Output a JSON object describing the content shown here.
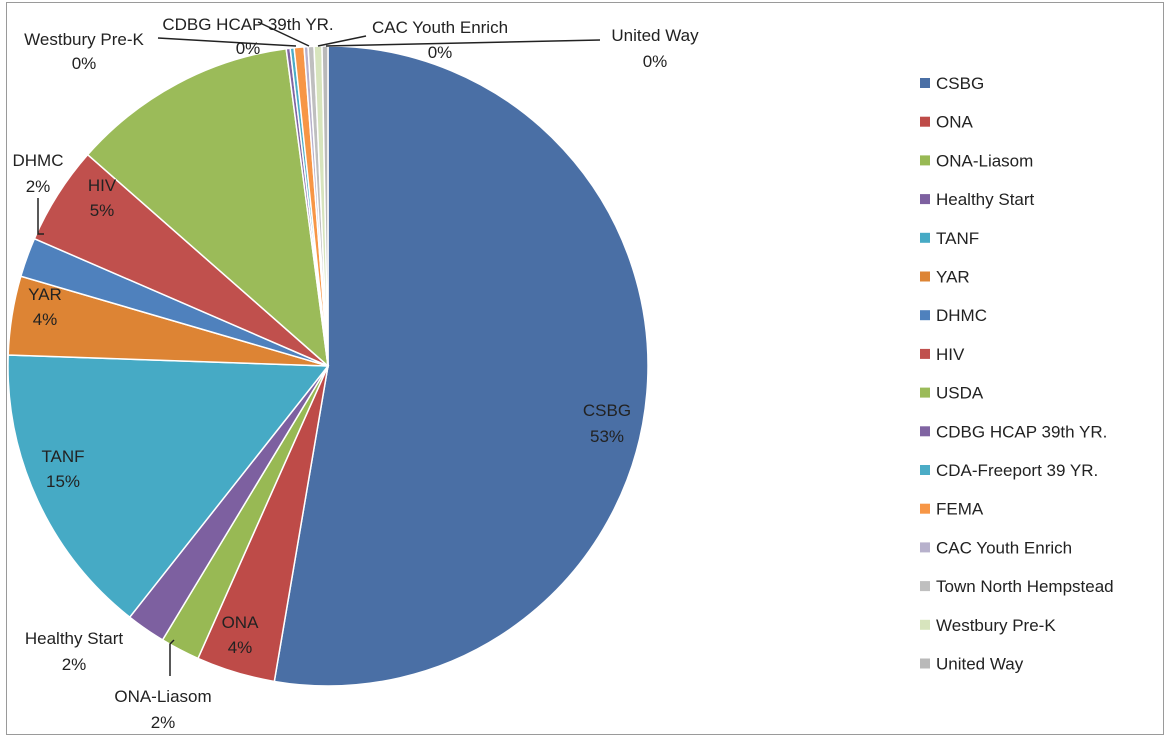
{
  "chart_data": {
    "type": "pie",
    "legend_position": "right",
    "categories": [
      "CSBG",
      "ONA",
      "ONA-Liasom",
      "Healthy Start",
      "TANF",
      "YAR",
      "DHMC",
      "HIV",
      "USDA",
      "CDBG HCAP 39th YR.",
      "CDA-Freeport 39 YR.",
      "FEMA",
      "CAC Youth Enrich",
      "Town North Hempstead",
      "Westbury Pre-K",
      "United Way"
    ],
    "values": [
      53,
      4,
      2,
      2,
      15,
      4,
      2,
      5,
      11.5,
      0.2,
      0.2,
      0.5,
      0.2,
      0.3,
      0.4,
      0.3
    ],
    "colors": [
      "#4a6fa5",
      "#be4b48",
      "#98b954",
      "#7d60a0",
      "#46aac5",
      "#dd8434",
      "#4f81bd",
      "#c0504d",
      "#9bbb59",
      "#8064a2",
      "#4bacc6",
      "#f79646",
      "#b7b1cc",
      "#bfbfbf",
      "#d7e4bd",
      "#b9b9b9"
    ],
    "data_labels": [
      {
        "name": "CSBG",
        "pct": "53%"
      },
      {
        "name": "ONA",
        "pct": "4%"
      },
      {
        "name": "ONA-Liasom",
        "pct": "2%"
      },
      {
        "name": "Healthy Start",
        "pct": "2%"
      },
      {
        "name": "TANF",
        "pct": "15%"
      },
      {
        "name": "YAR",
        "pct": "4%"
      },
      {
        "name": "DHMC",
        "pct": "2%"
      },
      {
        "name": "HIV",
        "pct": "5%"
      },
      {
        "name": "CDBG HCAP 39th YR.",
        "pct": "0%"
      },
      {
        "name": "CAC Youth Enrich",
        "pct": "0%"
      },
      {
        "name": "Westbury Pre-K",
        "pct": "0%"
      },
      {
        "name": "United Way",
        "pct": "0%"
      }
    ]
  }
}
